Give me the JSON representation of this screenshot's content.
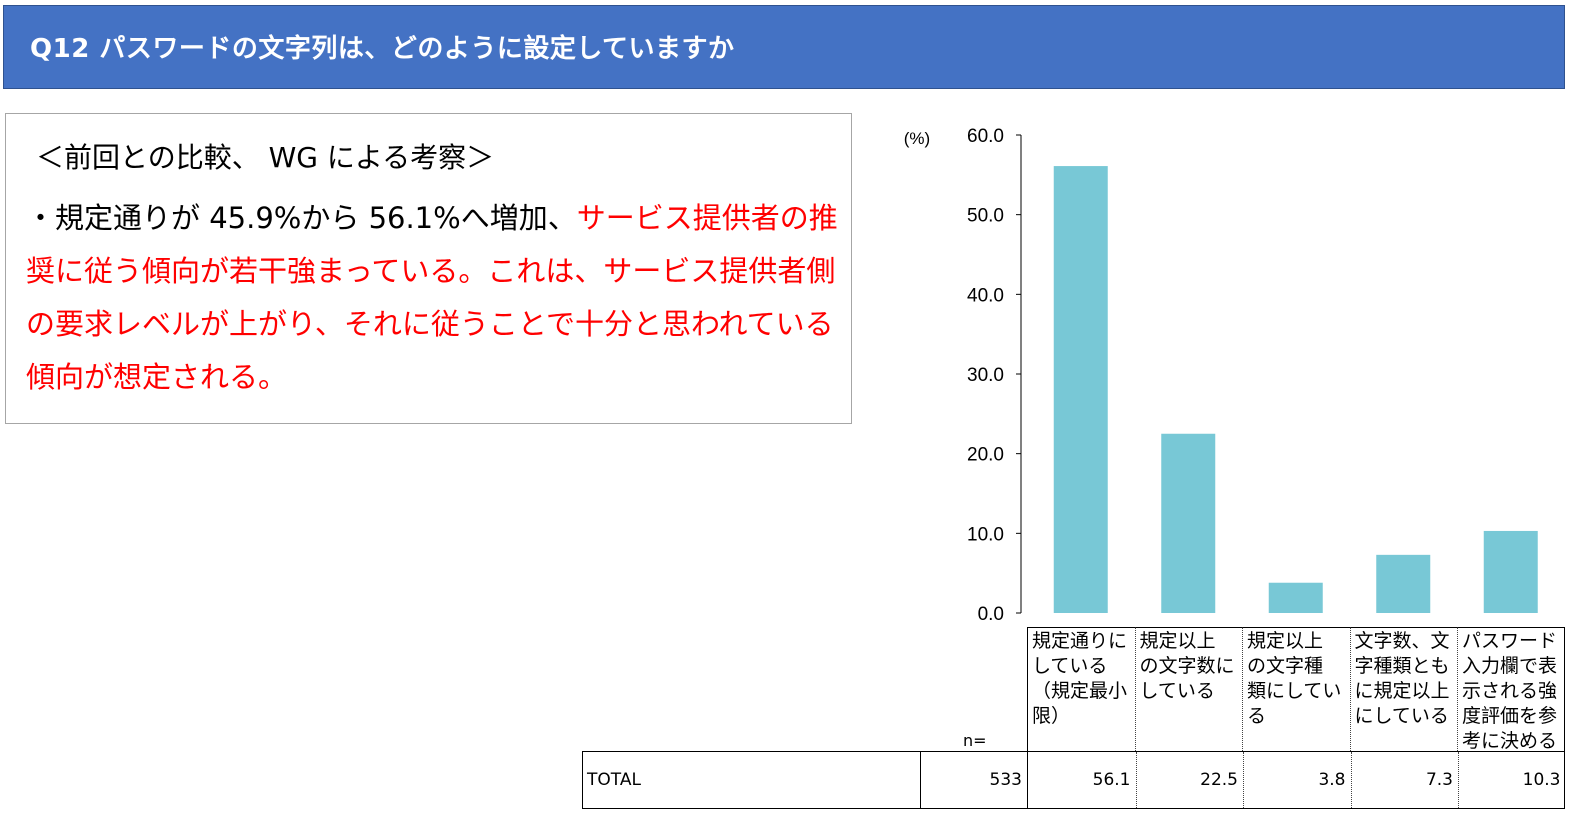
{
  "header": {
    "title": "Q12  パスワードの文字列は、どのように設定していますか"
  },
  "comment": {
    "heading": "＜前回との比較、 WG による考察＞",
    "body_black": "・規定通りが 45.9%から 56.1%へ増加、",
    "body_red": "サービス提供者の推奨に従う傾向が若干強まっている。これは、サービス提供者側の要求レベルが上がり、それに従うことで十分と思われている傾向が想定される。"
  },
  "chart_data": {
    "type": "bar",
    "unit_label": "(%)",
    "ylim": [
      0,
      60
    ],
    "yticks": [
      "60.0",
      "50.0",
      "40.0",
      "30.0",
      "20.0",
      "10.0",
      "0.0"
    ],
    "categories": [
      "規定通りにしている（規定最小限）",
      "規定以上の文字数にしている",
      "規定以上の文字種類にしている",
      "文字数、文字種類ともに規定以上にしている",
      "パスワード入力欄で表示される強度評価を参考に決める"
    ],
    "category_lines": [
      [
        "規定通りに",
        "している",
        "（規定最小",
        "限）"
      ],
      [
        "規定以上",
        "の文字数に",
        "している"
      ],
      [
        "規定以上",
        "の文字種",
        "類にしてい",
        "る"
      ],
      [
        "文字数、文",
        "字種類とも",
        "に規定以上",
        "にしている"
      ],
      [
        "パスワード",
        "入力欄で表",
        "示される強",
        "度評価を参",
        "考に決める"
      ]
    ],
    "series": [
      {
        "values": [
          56.1,
          22.5,
          3.8,
          7.3,
          10.3
        ]
      }
    ],
    "bar_color": "#78c8d6",
    "grid": false
  },
  "table": {
    "n_label": "n=",
    "row_label": "TOTAL",
    "n_value": "533",
    "values": [
      "56.1",
      "22.5",
      "3.8",
      "7.3",
      "10.3"
    ]
  }
}
